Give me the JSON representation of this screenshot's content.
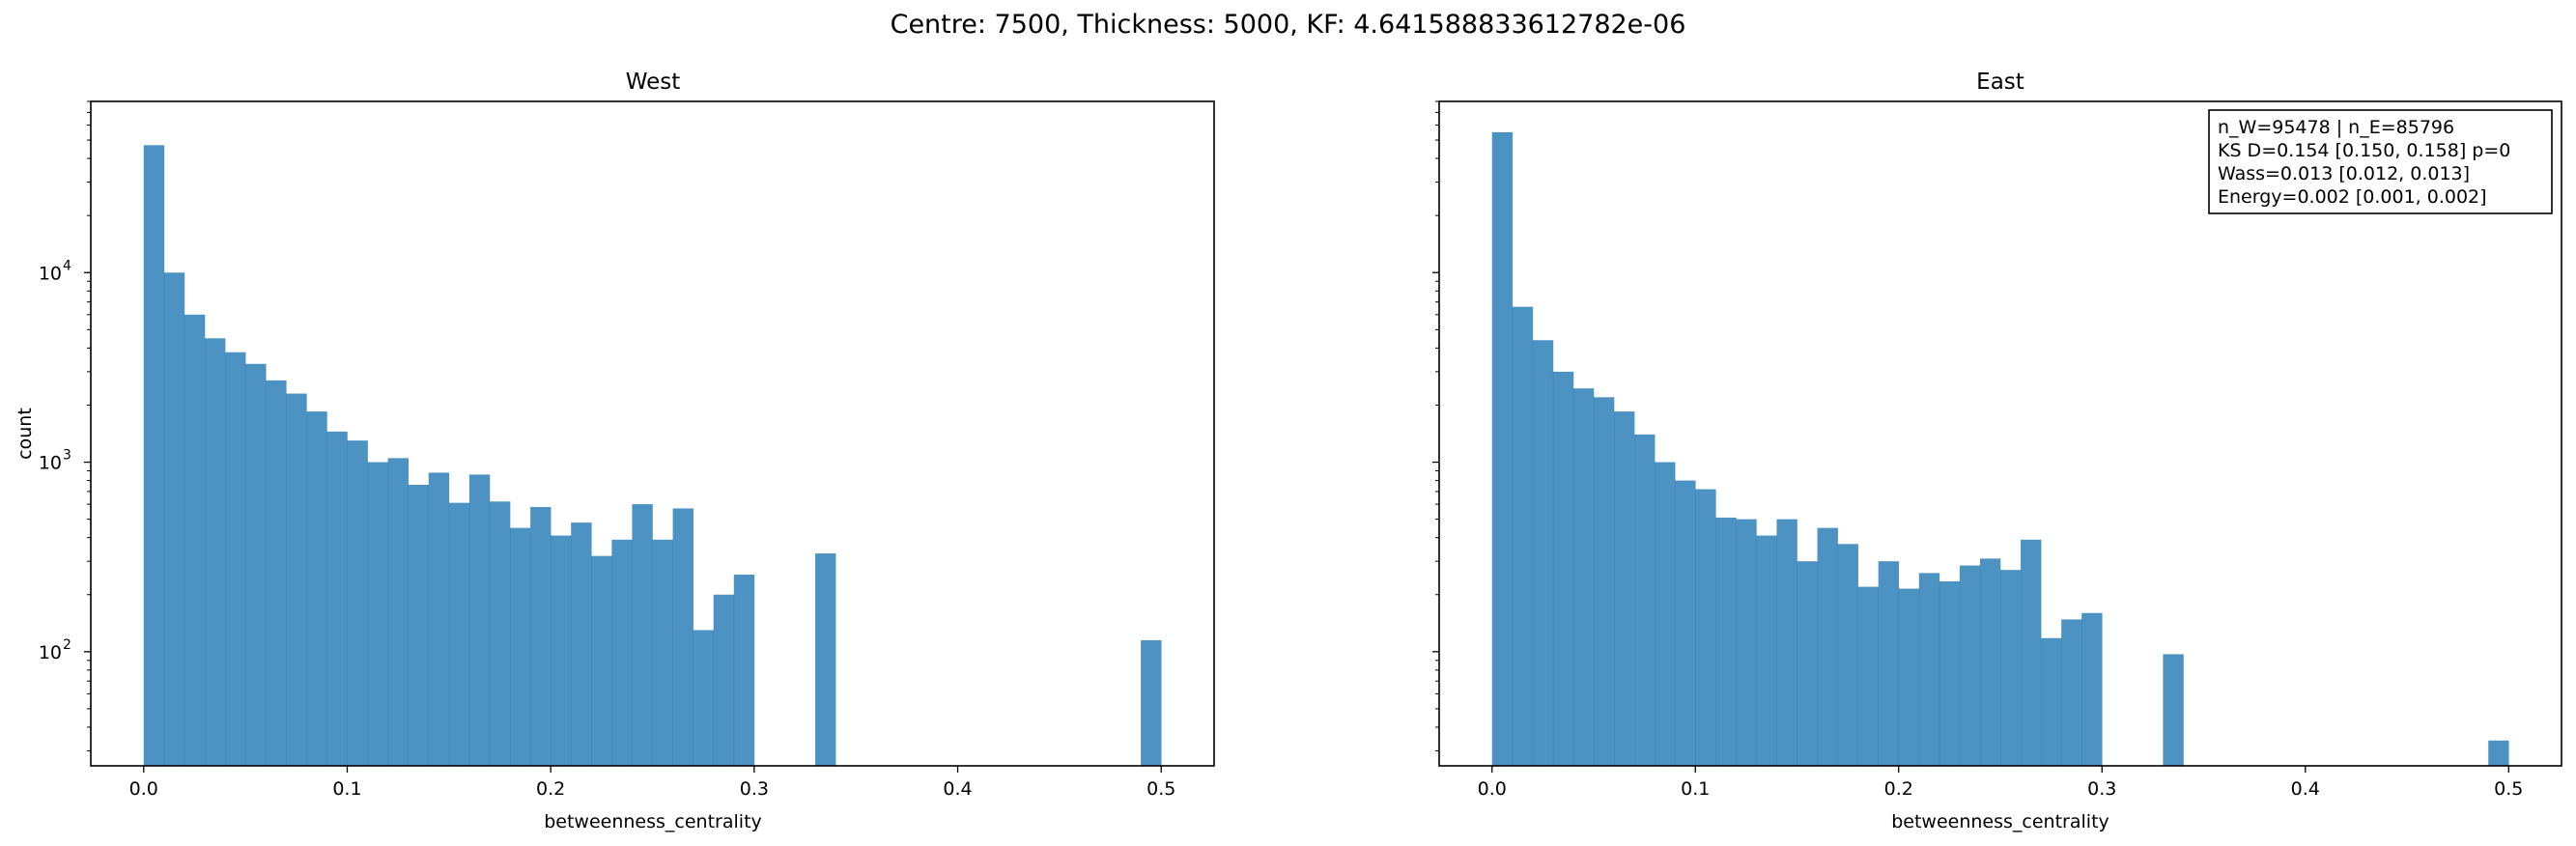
{
  "figure": {
    "suptitle": "Centre: 7500, Thickness: 5000, KF: 4.641588833612782e-06"
  },
  "chart_data": [
    {
      "type": "bar",
      "subtype": "histogram",
      "title": "West",
      "xlabel": "betweenness_centrality",
      "ylabel": "count",
      "yscale": "log",
      "xlim": [
        -0.026,
        0.526
      ],
      "ylim": [
        25,
        80000
      ],
      "color": "#1f77b4",
      "bar_alpha": 0.8,
      "bins": {
        "start": 0.0,
        "width": 0.01,
        "count": 50
      },
      "values": [
        47000,
        10000,
        6000,
        4500,
        3800,
        3300,
        2700,
        2300,
        1850,
        1450,
        1300,
        1000,
        1050,
        760,
        880,
        610,
        860,
        620,
        450,
        580,
        410,
        480,
        320,
        390,
        600,
        390,
        570,
        130,
        200,
        255,
        0,
        0,
        0,
        330,
        0,
        0,
        0,
        0,
        0,
        0,
        0,
        0,
        0,
        0,
        0,
        0,
        0,
        0,
        0,
        115
      ],
      "x_ticks": [
        0.0,
        0.1,
        0.2,
        0.3,
        0.4,
        0.5
      ],
      "x_tick_labels": [
        "0.0",
        "0.1",
        "0.2",
        "0.3",
        "0.4",
        "0.5"
      ],
      "y_ticks": [
        100,
        1000,
        10000
      ],
      "y_tick_labels": [
        "10",
        "10",
        "10"
      ],
      "y_tick_exponents": [
        "2",
        "3",
        "4"
      ],
      "grid": false,
      "annotation": []
    },
    {
      "type": "bar",
      "subtype": "histogram",
      "title": "East",
      "xlabel": "betweenness_centrality",
      "ylabel": "",
      "yscale": "log",
      "xlim": [
        -0.026,
        0.526
      ],
      "ylim": [
        25,
        80000
      ],
      "color": "#1f77b4",
      "bar_alpha": 0.8,
      "bins": {
        "start": 0.0,
        "width": 0.01,
        "count": 50
      },
      "values": [
        55000,
        6600,
        4400,
        3000,
        2450,
        2200,
        1850,
        1400,
        1000,
        800,
        720,
        510,
        500,
        410,
        500,
        300,
        450,
        370,
        220,
        300,
        215,
        260,
        235,
        285,
        310,
        270,
        390,
        118,
        148,
        160,
        0,
        0,
        0,
        97,
        0,
        0,
        0,
        0,
        0,
        0,
        0,
        0,
        0,
        0,
        0,
        0,
        0,
        0,
        0,
        34
      ],
      "x_ticks": [
        0.0,
        0.1,
        0.2,
        0.3,
        0.4,
        0.5
      ],
      "x_tick_labels": [
        "0.0",
        "0.1",
        "0.2",
        "0.3",
        "0.4",
        "0.5"
      ],
      "y_ticks": [
        100,
        1000,
        10000
      ],
      "y_tick_labels": [],
      "grid": false,
      "legend_position": "upper right",
      "annotation": [
        "n_W=95478 | n_E=85796",
        "KS D=0.154 [0.150, 0.158]  p=0",
        "Wass=0.013 [0.012, 0.013]",
        "Energy=0.002 [0.001, 0.002]"
      ]
    }
  ]
}
